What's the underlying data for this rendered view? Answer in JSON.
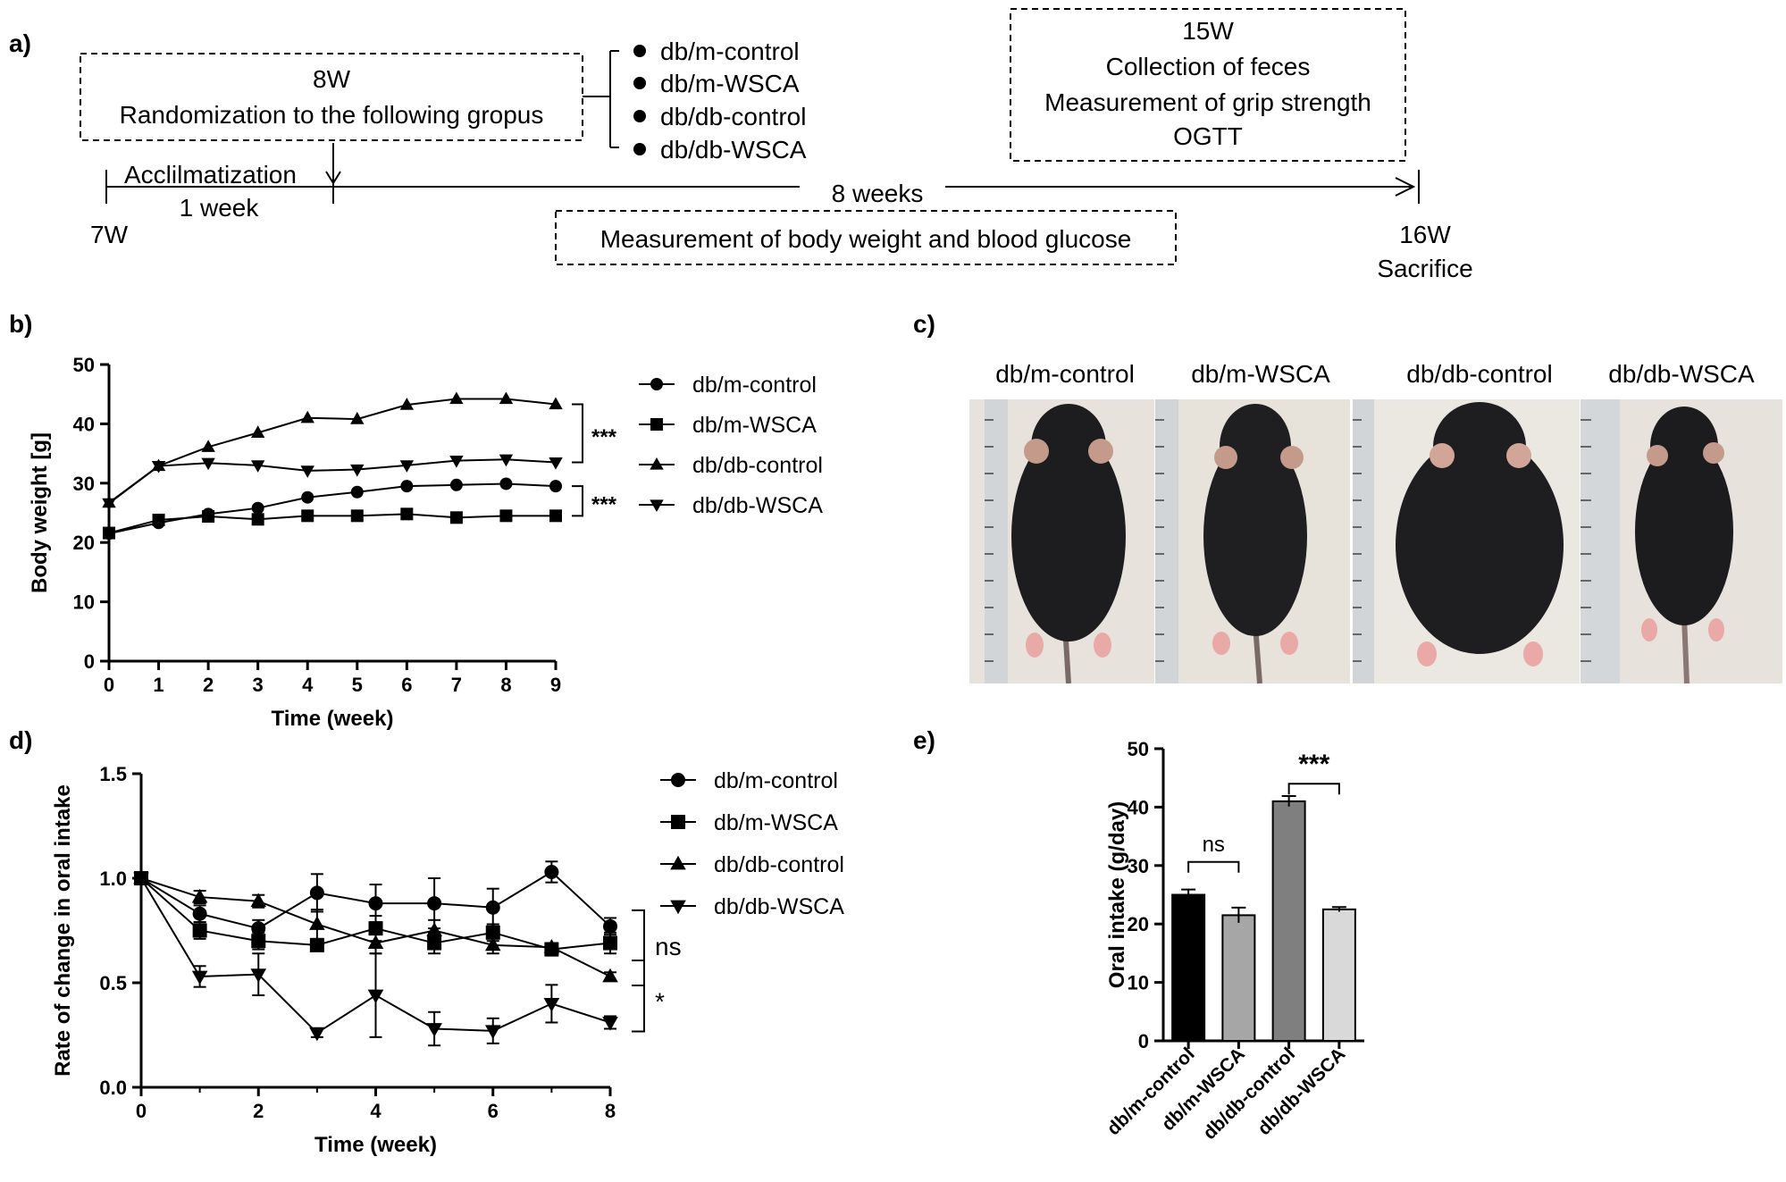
{
  "panel_a": {
    "label": "a)",
    "start_box": {
      "week": "8W",
      "text": "Randomization to the following gropus"
    },
    "groups": [
      "db/m-control",
      "db/m-WSCA",
      "db/db-control",
      "db/db-WSCA"
    ],
    "end_box": {
      "week": "15W",
      "lines": [
        "Collection of feces",
        "Measurement of grip strength",
        "OGTT"
      ]
    },
    "acclimatization": "Acclilmatization",
    "one_week": "1 week",
    "eight_weeks": "8 weeks",
    "start_week": "7W",
    "measure_box": "Measurement of body weight and blood glucose",
    "end_week": "16W",
    "sacrifice": "Sacrifice"
  },
  "panel_c": {
    "label": "c)",
    "photo_labels": [
      "db/m-control",
      "db/m-WSCA",
      "db/db-control",
      "db/db-WSCA"
    ]
  },
  "colors": {
    "bar_dbm_control": "#000000",
    "bar_dbm_wsca": "#a6a6a6",
    "bar_dbdb_control": "#7f7f7f",
    "bar_dbdb_wsca": "#d9d9d9"
  },
  "chart_data": [
    {
      "id": "b",
      "panel_label": "b)",
      "type": "line",
      "xlabel": "Time (week)",
      "ylabel": "Body weight [g]",
      "x": [
        0,
        1,
        2,
        3,
        4,
        5,
        6,
        7,
        8,
        9
      ],
      "xticks": [
        "0",
        "1",
        "2",
        "3",
        "4",
        "5",
        "6",
        "7",
        "8",
        "9"
      ],
      "yticks": [
        "0",
        "10",
        "20",
        "30",
        "40",
        "50"
      ],
      "xlim": [
        0,
        9
      ],
      "ylim": [
        0,
        50
      ],
      "series": [
        {
          "name": "db/m-control",
          "marker": "circle",
          "values": [
            21.5,
            23.3,
            24.8,
            25.8,
            27.6,
            28.5,
            29.5,
            29.7,
            29.9,
            29.5
          ]
        },
        {
          "name": "db/m-WSCA",
          "marker": "square",
          "values": [
            21.6,
            23.8,
            24.4,
            23.9,
            24.5,
            24.5,
            24.8,
            24.2,
            24.5,
            24.5
          ]
        },
        {
          "name": "db/db-control",
          "marker": "triangle-up",
          "values": [
            26.7,
            32.9,
            36.1,
            38.5,
            41.0,
            40.8,
            43.2,
            44.2,
            44.2,
            43.3
          ]
        },
        {
          "name": "db/db-WSCA",
          "marker": "triangle-down",
          "values": [
            26.6,
            32.9,
            33.4,
            33.0,
            32.1,
            32.3,
            33.0,
            33.8,
            34.0,
            33.5
          ]
        }
      ],
      "annotations": [
        "***",
        "***"
      ]
    },
    {
      "id": "d",
      "panel_label": "d)",
      "type": "line",
      "xlabel": "Time (week)",
      "ylabel": "Rate of change in oral intake",
      "x": [
        0,
        1,
        2,
        3,
        4,
        5,
        6,
        7,
        8
      ],
      "xticks": [
        "0",
        "2",
        "4",
        "6",
        "8"
      ],
      "yticks": [
        "0.0",
        "0.5",
        "1.0",
        "1.5"
      ],
      "xlim": [
        0,
        8
      ],
      "ylim": [
        0,
        1.5
      ],
      "series": [
        {
          "name": "db/m-control",
          "marker": "circle",
          "values": [
            1.0,
            0.83,
            0.76,
            0.93,
            0.88,
            0.88,
            0.86,
            1.03,
            0.77
          ],
          "errors": [
            0,
            0.04,
            0.04,
            0.09,
            0.09,
            0.12,
            0.09,
            0.05,
            0.04
          ]
        },
        {
          "name": "db/m-WSCA",
          "marker": "square",
          "values": [
            1.0,
            0.75,
            0.7,
            0.68,
            0.76,
            0.69,
            0.74,
            0.66,
            0.69
          ],
          "errors": [
            0,
            0.04,
            0.04,
            0.02,
            0.06,
            0.05,
            0.04,
            0.03,
            0.05
          ]
        },
        {
          "name": "db/db-control",
          "marker": "triangle-up",
          "values": [
            1.0,
            0.91,
            0.89,
            0.78,
            0.69,
            0.75,
            0.68,
            0.67,
            0.53
          ],
          "errors": [
            0,
            0.03,
            0.03,
            0.07,
            0.05,
            0.05,
            0.04,
            0.02,
            0.02
          ]
        },
        {
          "name": "db/db-WSCA",
          "marker": "triangle-down",
          "values": [
            1.0,
            0.53,
            0.54,
            0.26,
            0.44,
            0.28,
            0.27,
            0.4,
            0.31
          ],
          "errors": [
            0,
            0.05,
            0.1,
            0.02,
            0.2,
            0.08,
            0.06,
            0.09,
            0.03
          ]
        }
      ],
      "annotations": [
        "ns",
        "*"
      ]
    },
    {
      "id": "e",
      "panel_label": "e)",
      "type": "bar",
      "ylabel": "Oral intake (g/day)",
      "categories": [
        "db/m-control",
        "db/m-WSCA",
        "db/db-control",
        "db/db-WSCA"
      ],
      "values": [
        25.0,
        21.5,
        41.0,
        22.5
      ],
      "errors": [
        0.9,
        1.3,
        0.9,
        0.4
      ],
      "yticks": [
        "0",
        "10",
        "20",
        "30",
        "40",
        "50"
      ],
      "ylim": [
        0,
        50
      ],
      "annotations": [
        "ns",
        "***"
      ]
    }
  ]
}
